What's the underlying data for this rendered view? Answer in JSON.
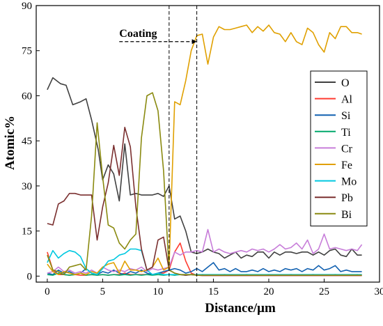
{
  "chart_data": {
    "type": "line",
    "title": "",
    "xlabel": "Distance/μm",
    "ylabel": "Atomic%",
    "xlim": [
      -1,
      30
    ],
    "ylim": [
      -2,
      90
    ],
    "xticks": [
      0,
      5,
      10,
      15,
      20,
      25,
      30
    ],
    "yticks": [
      0,
      15,
      30,
      45,
      60,
      75,
      90
    ],
    "grid": false,
    "legend_position": "right",
    "annotation": {
      "text": "Coating",
      "arrow_from": [
        6.5,
        78
      ],
      "arrow_to": [
        13.5,
        78
      ],
      "vlines": [
        11.0,
        13.5
      ]
    },
    "series": [
      {
        "name": "O",
        "color": "#404040",
        "x": [
          0,
          0.5,
          1.2,
          1.7,
          2.3,
          3.0,
          3.5,
          4.0,
          4.6,
          5.0,
          5.5,
          6.0,
          6.5,
          7.0,
          7.5,
          8.0,
          8.5,
          9.0,
          9.5,
          10.0,
          10.5,
          11.0,
          11.5,
          12.0,
          12.5,
          13.0,
          13.5,
          14.0,
          14.5,
          15.0,
          15.5,
          16.0,
          16.5,
          17.0,
          17.5,
          18.0,
          18.5,
          19.0,
          19.5,
          20.0,
          20.5,
          21.0,
          21.5,
          22.0,
          22.5,
          23.0,
          23.5,
          24.0,
          24.5,
          25.0,
          25.5,
          26.0,
          26.5,
          27.0,
          27.5,
          28.0,
          28.4
        ],
        "y": [
          62,
          66,
          64,
          63.5,
          57,
          58,
          59,
          52,
          42,
          32,
          37,
          34,
          25,
          44,
          27,
          27.5,
          27,
          27,
          27,
          27.5,
          26.5,
          30,
          19,
          20,
          15,
          8,
          7.5,
          8,
          9,
          8,
          7.5,
          6,
          7,
          8,
          6,
          7,
          6.5,
          8,
          8,
          6,
          8,
          7,
          8,
          8,
          7.5,
          8,
          8,
          7,
          8,
          7,
          8.5,
          9,
          7,
          6.5,
          9,
          7,
          7
        ]
      },
      {
        "name": "Al",
        "color": "#ff3b30",
        "x": [
          0,
          0.5,
          1,
          1.5,
          2,
          2.5,
          3,
          3.5,
          4,
          4.5,
          5,
          5.5,
          6,
          6.5,
          7,
          7.5,
          8,
          8.5,
          9,
          9.5,
          10,
          10.5,
          11,
          11.5,
          12,
          12.5,
          13,
          13.5,
          14,
          15,
          16,
          17,
          18,
          19,
          20,
          21,
          22,
          23,
          24,
          25,
          26,
          27,
          28,
          28.4
        ],
        "y": [
          8,
          2,
          0.5,
          0.5,
          0.3,
          0.5,
          0.3,
          0.3,
          0.5,
          0.3,
          0.5,
          0.3,
          0.5,
          0.5,
          1,
          0.5,
          0.5,
          0.5,
          0.5,
          0.5,
          1,
          1,
          2,
          8,
          11,
          5,
          1,
          0.3,
          0.2,
          0.2,
          0.2,
          0.2,
          0.2,
          0.2,
          0.2,
          0.2,
          0.2,
          0.2,
          0.2,
          0.2,
          0.2,
          0.2,
          0.2,
          0.2
        ]
      },
      {
        "name": "Si",
        "color": "#1060b0",
        "x": [
          0,
          0.5,
          1,
          1.5,
          2,
          2.5,
          3,
          3.5,
          4,
          4.5,
          5,
          5.5,
          6,
          6.5,
          7,
          7.5,
          8,
          8.5,
          9,
          9.5,
          10,
          10.5,
          11,
          11.5,
          12,
          12.5,
          13,
          13.5,
          14,
          14.5,
          15,
          15.5,
          16,
          16.5,
          17,
          17.5,
          18,
          18.5,
          19,
          19.5,
          20,
          20.5,
          21,
          21.5,
          22,
          22.5,
          23,
          23.5,
          24,
          24.5,
          25,
          25.5,
          26,
          26.5,
          27,
          27.5,
          28,
          28.4
        ],
        "y": [
          1,
          0.5,
          2,
          1,
          1.5,
          0.5,
          1,
          2.5,
          1,
          0.5,
          1.5,
          1,
          2,
          1,
          0.5,
          1.5,
          1,
          2,
          1,
          0.5,
          1,
          1.5,
          2,
          2.5,
          2,
          1,
          1.5,
          2.5,
          1.5,
          3,
          4.5,
          2,
          2.5,
          1.5,
          2.5,
          1.5,
          1.5,
          2,
          1.5,
          2.5,
          1.5,
          2,
          1.5,
          2.5,
          2,
          2.5,
          1.5,
          2.5,
          2,
          3.5,
          2,
          2.5,
          3.5,
          1.5,
          2,
          1.5,
          1.5,
          1.5
        ]
      },
      {
        "name": "Ti",
        "color": "#00a86b",
        "x": [
          0,
          0.5,
          1,
          1.5,
          2,
          2.5,
          3,
          3.5,
          4,
          4.5,
          5,
          5.5,
          6,
          6.5,
          7,
          7.5,
          8,
          8.5,
          9,
          9.5,
          10,
          10.5,
          11,
          11.5,
          12,
          12.5,
          13,
          13.5,
          14,
          15,
          16,
          17,
          18,
          19,
          20,
          21,
          22,
          23,
          24,
          25,
          26,
          27,
          28,
          28.4
        ],
        "y": [
          0.5,
          0.3,
          1,
          0.5,
          0.3,
          0.5,
          1,
          0.3,
          0.5,
          0.3,
          0.5,
          0.3,
          0.5,
          0.3,
          0.5,
          0.3,
          0.5,
          0.3,
          0.5,
          0.3,
          0.5,
          0.3,
          0.5,
          0.3,
          0.5,
          0.3,
          0.5,
          0.3,
          0.5,
          0.3,
          0.5,
          0.3,
          0.5,
          0.3,
          0.5,
          0.3,
          0.5,
          0.3,
          0.5,
          0.3,
          0.5,
          0.3,
          0.5,
          0.3
        ]
      },
      {
        "name": "Cr",
        "color": "#c77dd9",
        "x": [
          0,
          0.5,
          1,
          1.5,
          2,
          2.5,
          3,
          3.5,
          4,
          4.5,
          5,
          5.5,
          6,
          6.5,
          7,
          7.5,
          8,
          8.5,
          9,
          9.5,
          10,
          10.5,
          11,
          11.5,
          12,
          12.5,
          13,
          13.5,
          14,
          14.5,
          15,
          15.5,
          16,
          16.5,
          17,
          17.5,
          18,
          18.5,
          19,
          19.5,
          20,
          20.5,
          21,
          21.5,
          22,
          22.5,
          23,
          23.5,
          24,
          24.5,
          25,
          25.5,
          26,
          26.5,
          27,
          27.5,
          28,
          28.4
        ],
        "y": [
          1,
          1.5,
          3,
          1.5,
          2,
          1,
          1.5,
          1,
          2,
          1,
          3,
          2,
          1.5,
          2,
          1.5,
          2.5,
          2,
          3,
          1.5,
          2.5,
          2,
          2.5,
          3,
          8,
          7,
          8,
          8,
          8.5,
          8,
          15.5,
          8,
          9,
          8,
          7.5,
          8,
          8.5,
          8,
          9,
          8.5,
          9,
          8,
          9,
          10.5,
          9,
          9.5,
          11,
          9,
          12,
          7.5,
          9,
          14,
          9,
          9.5,
          9,
          8.5,
          9,
          8.5,
          10.5
        ]
      },
      {
        "name": "Fe",
        "color": "#e0a000",
        "x": [
          0,
          0.5,
          1,
          1.5,
          2,
          2.5,
          3,
          3.5,
          4,
          4.5,
          5,
          5.5,
          6,
          6.5,
          7,
          7.5,
          8,
          8.5,
          9,
          9.5,
          10,
          10.5,
          11,
          11.5,
          12,
          12.5,
          13,
          13.5,
          14,
          14.5,
          15,
          15.5,
          16,
          16.5,
          17,
          17.5,
          18,
          18.5,
          19,
          19.5,
          20,
          20.5,
          21,
          21.5,
          22,
          22.5,
          23,
          23.5,
          24,
          24.5,
          25,
          25.5,
          26,
          26.5,
          27,
          27.5,
          28,
          28.4
        ],
        "y": [
          4,
          1.5,
          0.5,
          1.5,
          1,
          0.5,
          1,
          0.5,
          1.5,
          1,
          3,
          4,
          4.5,
          1,
          5,
          2,
          2,
          1.5,
          2,
          3,
          6,
          2,
          3,
          58,
          57,
          65,
          75,
          80,
          80.5,
          70.5,
          79.5,
          83,
          82,
          82,
          82.5,
          83,
          83.5,
          81,
          83,
          81.5,
          83.5,
          81,
          80.5,
          78,
          81,
          78,
          77,
          82.5,
          81,
          77,
          74.5,
          81,
          79,
          83,
          83,
          81,
          81,
          80.5
        ]
      },
      {
        "name": "Mo",
        "color": "#00c8e0",
        "x": [
          0,
          0.5,
          1,
          1.5,
          2,
          2.5,
          3,
          3.5,
          4,
          4.5,
          5,
          5.5,
          6,
          6.5,
          7,
          7.5,
          8,
          8.5,
          9,
          9.5,
          10,
          10.5,
          11,
          11.5,
          12,
          12.5,
          13,
          13.5,
          14,
          15,
          16,
          17,
          18,
          19,
          20,
          21,
          22,
          23,
          24,
          25,
          26,
          27,
          28,
          28.4
        ],
        "y": [
          4.5,
          8.5,
          6,
          7.5,
          8.5,
          8,
          6.5,
          2.5,
          1,
          0.5,
          2.5,
          5,
          5.5,
          7,
          7.5,
          9,
          9,
          8.5,
          2,
          0.5,
          1,
          0.5,
          0.5,
          0.5,
          0.5,
          0.5,
          0.5,
          0.5,
          0.5,
          0.5,
          0.5,
          0.5,
          0.5,
          0.5,
          0.5,
          0.5,
          0.5,
          0.5,
          0.5,
          0.5,
          0.5,
          0.5,
          0.5,
          0.5
        ]
      },
      {
        "name": "Pb",
        "color": "#7a2f2f",
        "x": [
          0,
          0.5,
          1,
          1.5,
          2,
          2.5,
          3,
          3.5,
          4,
          4.5,
          5,
          5.5,
          6,
          6.5,
          7,
          7.5,
          8,
          8.5,
          9,
          9.5,
          10,
          10.5,
          11,
          11.5,
          12,
          12.5,
          13,
          13.5,
          14,
          15,
          16,
          17,
          18,
          19,
          20,
          21,
          22,
          23,
          24,
          25,
          26,
          27,
          28,
          28.4
        ],
        "y": [
          17.5,
          17,
          24,
          25,
          27.5,
          27.5,
          27,
          27,
          27,
          12,
          23,
          31,
          43.5,
          33.5,
          49.5,
          43,
          23,
          9,
          2,
          3,
          12,
          13,
          2,
          1,
          0.5,
          0.3,
          0.5,
          0.3,
          0.2,
          0.2,
          0.2,
          0.2,
          0.2,
          0.2,
          0.2,
          0.2,
          0.2,
          0.2,
          0.2,
          0.2,
          0.2,
          0.2,
          0.2,
          0.2
        ]
      },
      {
        "name": "Bi",
        "color": "#8a8a10",
        "x": [
          0,
          0.5,
          1,
          1.5,
          2,
          2.5,
          3,
          3.5,
          4,
          4.5,
          5,
          5.5,
          6,
          6.5,
          7,
          7.5,
          8,
          8.5,
          9,
          9.5,
          10,
          10.5,
          11,
          11.5,
          12,
          12.5,
          13,
          13.5,
          14,
          15,
          16,
          17,
          18,
          19,
          20,
          21,
          22,
          23,
          24,
          25,
          26,
          27,
          28,
          28.4
        ],
        "y": [
          7,
          2,
          1.5,
          0.5,
          3,
          3.5,
          4,
          2,
          20,
          51,
          33,
          17,
          16,
          11,
          9,
          12,
          14,
          46,
          60,
          61,
          55,
          35,
          2,
          1,
          0.5,
          0.5,
          0.5,
          0.3,
          0.3,
          0.3,
          0.3,
          0.3,
          0.3,
          0.3,
          0.3,
          0.3,
          0.3,
          0.3,
          0.3,
          0.3,
          0.3,
          0.3,
          0.3,
          0.3
        ]
      }
    ]
  }
}
